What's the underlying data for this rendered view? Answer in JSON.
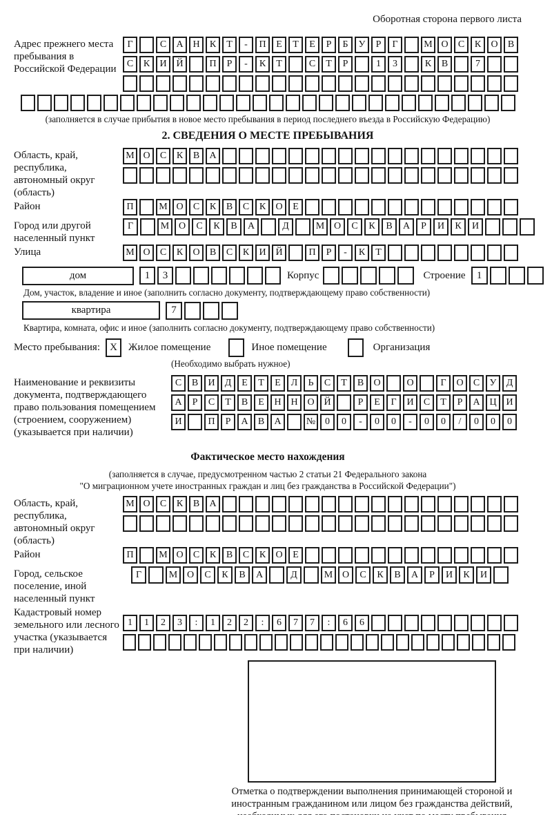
{
  "header_note": "Оборотная сторона первого листа",
  "prev_address": {
    "label": "Адрес прежнего места пребывания в Российской Федерации",
    "rows": [
      {
        "text": "Г САНКТ-ПЕТЕРБУРГ МОСКОВ",
        "len": 24
      },
      {
        "text": "СКИЙ ПР-КТ СТР 13 КВ 7",
        "len": 24
      },
      {
        "text": "",
        "len": 24
      }
    ],
    "full_row": {
      "text": "",
      "len": 30
    },
    "caption": "(заполняется в случае прибытия в новое место пребывания в период последнего въезда в Российскую Федерацию)"
  },
  "section2": {
    "title": "2. СВЕДЕНИЯ О МЕСТЕ ПРЕБЫВАНИЯ",
    "region": {
      "label": "Область, край, республика, автономный округ (область)",
      "rows": [
        {
          "text": "МОСКВА",
          "len": 24
        },
        {
          "text": "",
          "len": 24
        }
      ]
    },
    "district": {
      "label": "Район",
      "row": {
        "text": "П МОСКВСКОЕ",
        "len": 24
      }
    },
    "city": {
      "label": "Город или другой населенный пункт",
      "row": {
        "text": "Г МОСКВА Д МОСКВАРИКИ",
        "len": 24
      }
    },
    "street": {
      "label": "Улица",
      "row": {
        "text": "МОСКОВСКИЙ ПР-КТ",
        "len": 24
      }
    },
    "house": {
      "box_label": "дом",
      "cells": {
        "text": "13",
        "len": 8
      },
      "korpus_label": "Корпус",
      "korpus_cells": {
        "text": "",
        "len": 5
      },
      "stroenie_label": "Строение",
      "stroenie_cells": {
        "text": "1",
        "len": 4
      },
      "caption": "Дом, участок, владение и иное (заполнить согласно документу, подтверждающему право собственности)"
    },
    "apartment": {
      "box_label": "квартира",
      "cells": {
        "text": "7",
        "len": 4
      },
      "caption": "Квартира, комната, офис и иное (заполнить согласно документу, подтверждающему право собственности)"
    },
    "stay": {
      "label": "Место пребывания:",
      "options": [
        {
          "label": "Жилое помещение",
          "mark": "X"
        },
        {
          "label": "Иное помещение",
          "mark": ""
        },
        {
          "label": "Организация",
          "mark": ""
        }
      ],
      "note": "(Необходимо выбрать нужное)"
    },
    "doc": {
      "label": "Наименование и реквизиты документа, подтверждающего право пользования помещением (строением, сооружением) (указывается при наличии)",
      "rows": [
        {
          "text": "СВИДЕТЕЛЬСТВО О ГОСУД",
          "len": 21
        },
        {
          "text": "АРСТВЕННОЙ РЕГИСТРАЦИ",
          "len": 21
        },
        {
          "text": "И ПРАВА №00-00-00/000",
          "len": 21
        }
      ]
    }
  },
  "actual_location": {
    "title": "Фактическое место нахождения",
    "caption_line1": "(заполняется в случае, предусмотренном частью 2 статьи 21 Федерального закона",
    "caption_line2": "\"О миграционном учете иностранных граждан и лиц без гражданства в Российской Федерации\")",
    "region": {
      "label": "Область, край, республика, автономный округ (область)",
      "rows": [
        {
          "text": "МОСКВА",
          "len": 24
        },
        {
          "text": "",
          "len": 24
        }
      ]
    },
    "district": {
      "label": "Район",
      "row": {
        "text": "П МОСКВСКОЕ",
        "len": 24
      }
    },
    "city": {
      "label": "Город, сельское поселение, иной населенный пункт",
      "row": {
        "text": "Г МОСКВА Д МОСКВАРИКИ",
        "len": 22
      }
    },
    "cadastre": {
      "label": "Кадастровый номер земельного или лесного участка (указывается при наличии)",
      "rows": [
        {
          "text": "1123:122:677:66",
          "len": 24
        },
        {
          "text": "",
          "len": 26
        }
      ]
    }
  },
  "stamp": {
    "caption": "Отметка о подтверждении выполнения принимающей стороной и иностранным гражданином или лицом без гражданства действий, необходимых для его постановки на учет по месту пребывания"
  }
}
